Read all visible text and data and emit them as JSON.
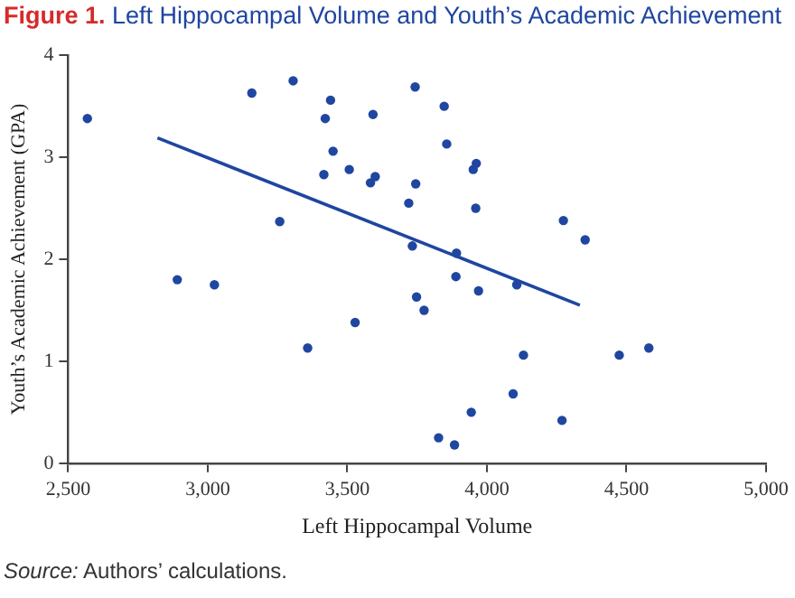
{
  "chart_data": {
    "type": "scatter",
    "title": "Figure 1. Left Hippocampal Volume and Youth’s Academic Achievement",
    "xlabel": "Left Hippocampal Volume",
    "ylabel": "Youth’s Academic Achievement (GPA)",
    "annotations": [
      "Source: Authors’ calculations."
    ],
    "xlim": [
      2500,
      5000
    ],
    "xticks": [
      {
        "value": 2500,
        "label": "2,500"
      },
      {
        "value": 3000,
        "label": "3,000"
      },
      {
        "value": 3500,
        "label": "3,500"
      },
      {
        "value": 4000,
        "label": "4,000"
      },
      {
        "value": 4500,
        "label": "4,500"
      },
      {
        "value": 5000,
        "label": "5,000"
      }
    ],
    "ylim": [
      0,
      4
    ],
    "yticks": [
      0,
      1,
      2,
      3,
      4
    ],
    "grid": false,
    "legend": false,
    "marker": "circle",
    "series": [
      {
        "color": "#1f46a0",
        "x": [
          2569,
          3158,
          3306,
          3440,
          3421,
          3592,
          3743,
          3449,
          3416,
          3507,
          3600,
          3583,
          3745,
          3720,
          3733,
          3258,
          2891,
          3024,
          3748,
          3528,
          3358,
          3775,
          3847,
          3856,
          3962,
          3951,
          3960,
          4274,
          4352,
          3891,
          3889,
          3970,
          4107,
          4131,
          4474,
          4580,
          4094,
          3944,
          4269,
          3827,
          3884
        ],
        "values": [
          3.38,
          3.63,
          3.75,
          3.56,
          3.38,
          3.42,
          3.69,
          3.06,
          2.83,
          2.88,
          2.81,
          2.75,
          2.74,
          2.55,
          2.13,
          2.37,
          1.8,
          1.75,
          1.63,
          1.38,
          1.13,
          1.5,
          3.5,
          3.13,
          2.94,
          2.88,
          2.5,
          2.38,
          2.19,
          2.06,
          1.83,
          1.69,
          1.75,
          1.06,
          1.06,
          1.13,
          0.68,
          0.5,
          0.42,
          0.25,
          0.18
        ]
      },
      {
        "type": "line",
        "color": "#1f46a0",
        "marker": "none",
        "x": [
          2820,
          4333
        ],
        "values": [
          3.19,
          1.55
        ]
      }
    ]
  }
}
